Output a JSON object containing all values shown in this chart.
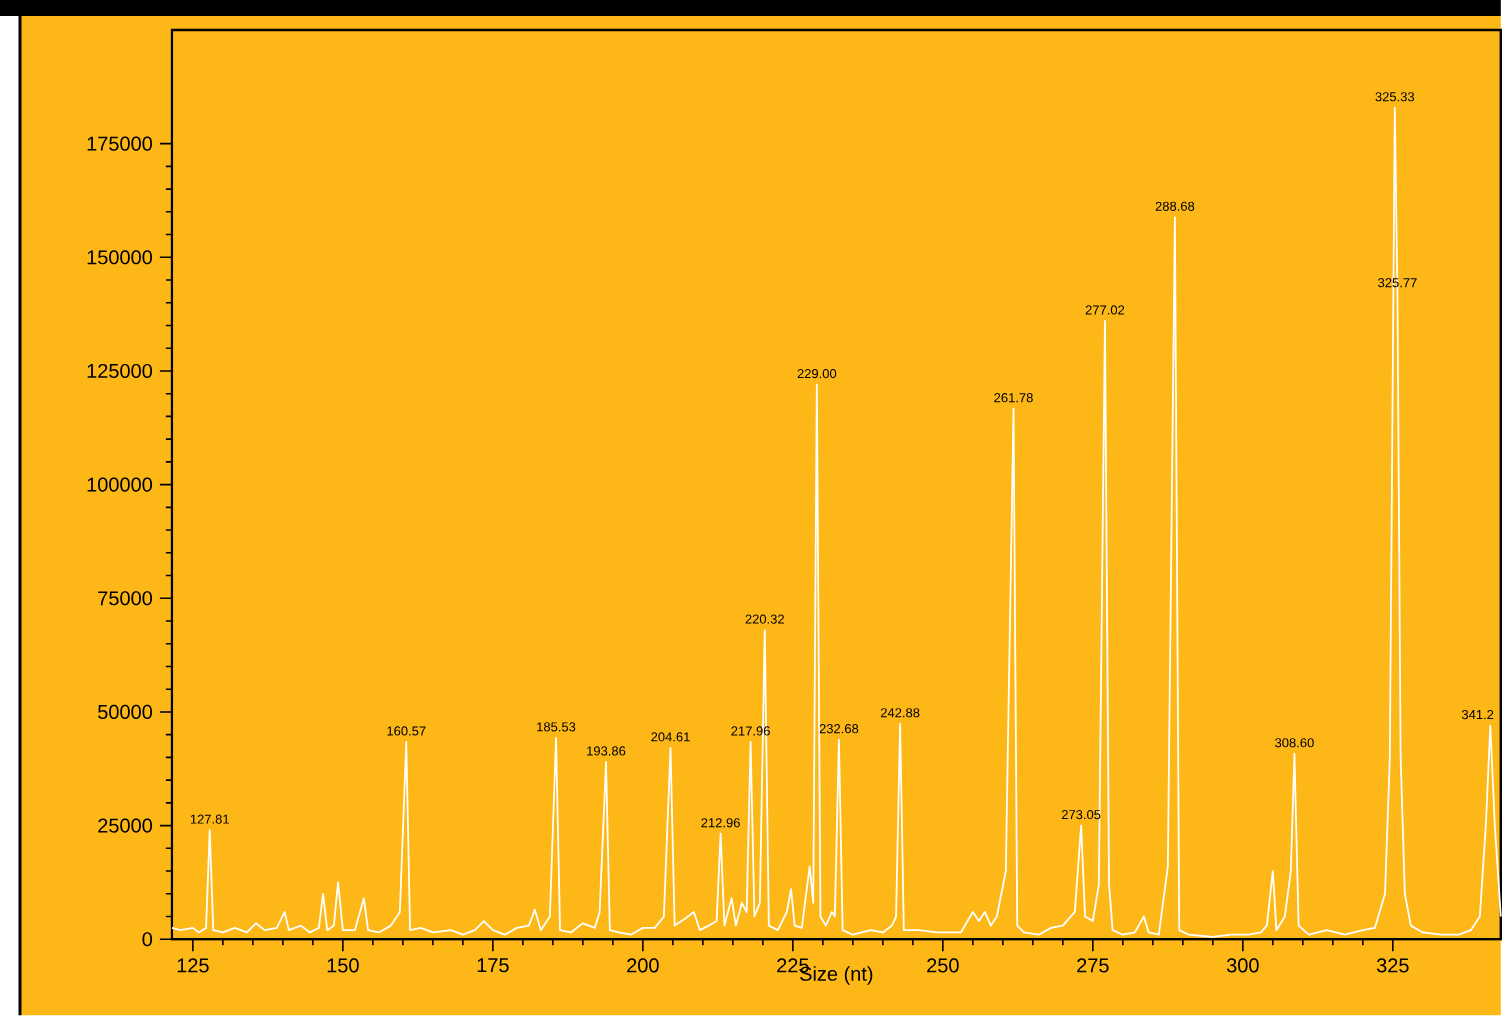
{
  "chart_data": {
    "type": "line",
    "xlabel": "Size (nt)",
    "color": "#ffffff",
    "xlim": [
      121.5,
      343
    ],
    "ylim": [
      0,
      200000
    ],
    "xticks": [
      125,
      150,
      175,
      200,
      225,
      250,
      275,
      300,
      325
    ],
    "yticks": [
      0,
      25000,
      50000,
      75000,
      100000,
      125000,
      150000,
      175000
    ],
    "x": [
      121.5,
      123,
      125,
      126,
      127.2,
      127.81,
      128.4,
      130,
      132,
      134,
      135.5,
      137,
      139,
      140.3,
      141,
      143,
      144.5,
      146,
      146.7,
      147.4,
      148.5,
      149.2,
      150,
      152,
      153.5,
      154.2,
      156,
      158,
      159.5,
      160.57,
      161.2,
      163,
      165,
      168,
      170,
      172,
      173.5,
      175,
      177,
      179,
      181,
      182,
      183,
      184.5,
      185.53,
      186.2,
      188,
      190,
      192,
      192.8,
      193.86,
      194.5,
      196,
      198,
      200,
      202,
      203.5,
      204.61,
      205.3,
      207,
      208.5,
      209.5,
      211,
      212.3,
      212.96,
      213.6,
      214.8,
      215.5,
      216.5,
      217.3,
      217.96,
      218.6,
      219.5,
      220.32,
      221,
      222.5,
      224,
      224.7,
      225.3,
      226.5,
      227.8,
      228.4,
      229,
      229.6,
      230.5,
      231.5,
      232,
      232.68,
      233.3,
      235,
      238,
      240,
      241.5,
      242.2,
      242.88,
      243.5,
      246,
      249,
      251,
      253,
      255,
      256,
      257,
      258,
      259,
      260.5,
      261.78,
      262.4,
      263.5,
      266,
      268,
      270,
      272,
      273.05,
      273.7,
      275,
      276,
      277.02,
      277.7,
      278.3,
      280,
      282,
      283.5,
      284.3,
      286,
      287.5,
      288.68,
      289.4,
      291,
      295,
      298,
      301,
      303,
      304,
      305,
      305.6,
      307,
      308,
      308.6,
      309.3,
      311,
      314,
      317,
      320,
      322,
      323.7,
      324.5,
      325.33,
      325.77,
      326.3,
      327,
      328,
      330,
      333,
      336,
      338,
      339.5,
      340.5,
      341.25,
      342,
      343
    ],
    "values": [
      2500,
      2000,
      2500,
      1500,
      2500,
      24000,
      2000,
      1500,
      2500,
      1500,
      3500,
      2000,
      2500,
      6000,
      2000,
      3000,
      1500,
      2500,
      10000,
      2000,
      3000,
      12500,
      2000,
      2000,
      9000,
      2000,
      1500,
      3000,
      6000,
      43400,
      2000,
      2500,
      1500,
      2000,
      1000,
      2000,
      4000,
      2000,
      1000,
      2500,
      3000,
      6500,
      2000,
      5000,
      44300,
      2000,
      1500,
      3500,
      2500,
      6000,
      39000,
      2000,
      1500,
      1000,
      2500,
      2500,
      5000,
      42100,
      3000,
      4500,
      6000,
      2000,
      3000,
      4000,
      23200,
      3000,
      9000,
      3000,
      8000,
      6000,
      43400,
      5000,
      8000,
      68000,
      3000,
      2000,
      6000,
      11000,
      3000,
      2500,
      16000,
      8000,
      122000,
      5000,
      3000,
      6000,
      5000,
      43900,
      2000,
      1000,
      2000,
      1500,
      3000,
      5000,
      47400,
      2000,
      2000,
      1500,
      1500,
      1500,
      6000,
      4000,
      6000,
      3000,
      5000,
      15000,
      116700,
      3000,
      1500,
      1000,
      2500,
      3000,
      6000,
      25000,
      5000,
      4000,
      12000,
      136000,
      12000,
      2000,
      1000,
      1500,
      5000,
      1500,
      1000,
      16000,
      158800,
      2000,
      1000,
      500,
      1000,
      1000,
      1500,
      3000,
      15000,
      2000,
      5000,
      15000,
      40800,
      3000,
      1000,
      2000,
      1000,
      2000,
      2500,
      10000,
      40000,
      182900,
      142000,
      40000,
      10000,
      3000,
      1500,
      1000,
      1000,
      2000,
      5000,
      25000,
      47000,
      25000,
      5000
    ],
    "annotations": [
      {
        "text": "127.81",
        "x": 127.81,
        "y": 24000
      },
      {
        "text": "160.57",
        "x": 160.57,
        "y": 43400
      },
      {
        "text": "185.53",
        "x": 185.53,
        "y": 44300
      },
      {
        "text": "193.86",
        "x": 193.86,
        "y": 39000
      },
      {
        "text": "204.61",
        "x": 204.61,
        "y": 42100
      },
      {
        "text": "212.96",
        "x": 212.96,
        "y": 23200
      },
      {
        "text": "217.96",
        "x": 217.96,
        "y": 43400
      },
      {
        "text": "220.32",
        "x": 220.32,
        "y": 68000
      },
      {
        "text": "229.00",
        "x": 229,
        "y": 122000
      },
      {
        "text": "232.68",
        "x": 232.68,
        "y": 43900
      },
      {
        "text": "242.88",
        "x": 242.88,
        "y": 47400
      },
      {
        "text": "261.78",
        "x": 261.78,
        "y": 116700
      },
      {
        "text": "273.05",
        "x": 273.05,
        "y": 25000
      },
      {
        "text": "277.02",
        "x": 277.02,
        "y": 136000
      },
      {
        "text": "288.68",
        "x": 288.68,
        "y": 158800
      },
      {
        "text": "308.60",
        "x": 308.6,
        "y": 40800
      },
      {
        "text": "325.33",
        "x": 325.33,
        "y": 182900
      },
      {
        "text": "325.77",
        "x": 325.77,
        "y": 142000
      },
      {
        "text": "341.2",
        "x": 341.25,
        "y": 47000
      }
    ]
  }
}
